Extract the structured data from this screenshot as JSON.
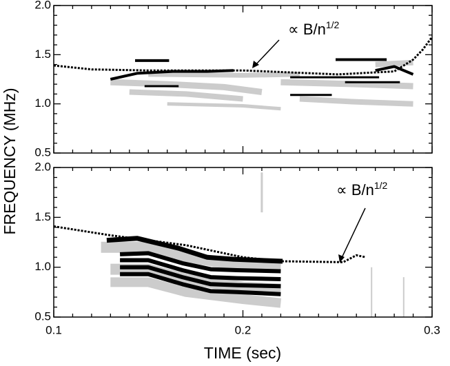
{
  "x_label": "TIME (sec)",
  "y_label": "FREQUENCY (MHz)",
  "chart_data": [
    {
      "type": "line",
      "xlim": [
        0.1,
        0.3
      ],
      "ylim": [
        0.5,
        2.0
      ],
      "xticks": [
        0.1,
        0.2,
        0.3
      ],
      "xminorticks": [
        0.11,
        0.12,
        0.13,
        0.14,
        0.15,
        0.16,
        0.17,
        0.18,
        0.19,
        0.21,
        0.22,
        0.23,
        0.24,
        0.25,
        0.26,
        0.27,
        0.28,
        0.29
      ],
      "yticks": [
        {
          "value": 0.5,
          "label": "0.5"
        },
        {
          "value": 1.0,
          "label": "1.0"
        },
        {
          "value": 1.5,
          "label": "1.5"
        },
        {
          "value": 2.0,
          "label": "2.0"
        }
      ],
      "yminorticks": [
        0.6,
        0.7,
        0.8,
        0.9,
        1.1,
        1.2,
        1.3,
        1.4,
        1.6,
        1.7,
        1.8,
        1.9
      ],
      "annotation": {
        "text": "∝ B/n",
        "sup": "1/2"
      },
      "series": [
        {
          "color": "#cccccc",
          "width": 9,
          "x": [
            0.13,
            0.16,
            0.19,
            0.21
          ],
          "values": [
            1.22,
            1.2,
            1.17,
            1.12
          ]
        },
        {
          "color": "#cccccc",
          "width": 8,
          "x": [
            0.14,
            0.17,
            0.2
          ],
          "values": [
            1.12,
            1.1,
            1.05
          ]
        },
        {
          "color": "#cccccc",
          "width": 7,
          "x": [
            0.15,
            0.2,
            0.23
          ],
          "values": [
            1.3,
            1.29,
            1.3
          ]
        },
        {
          "color": "#cccccc",
          "width": 9,
          "x": [
            0.22,
            0.26,
            0.29
          ],
          "values": [
            1.22,
            1.2,
            1.18
          ]
        },
        {
          "color": "#cccccc",
          "width": 8,
          "x": [
            0.23,
            0.26,
            0.29
          ],
          "values": [
            1.05,
            1.02,
            1.0
          ]
        },
        {
          "color": "#cccccc",
          "width": 8,
          "x": [
            0.27,
            0.29
          ],
          "values": [
            1.4,
            1.42
          ]
        },
        {
          "color": "#cccccc",
          "width": 5,
          "x": [
            0.16,
            0.2,
            0.22
          ],
          "values": [
            1.0,
            0.98,
            0.95
          ]
        },
        {
          "color": "#000000",
          "width": 4,
          "x": [
            0.13,
            0.144,
            0.163,
            0.181,
            0.195
          ],
          "values": [
            1.25,
            1.31,
            1.33,
            1.33,
            1.34
          ]
        },
        {
          "color": "#000000",
          "width": 4,
          "x": [
            0.143,
            0.161
          ],
          "values": [
            1.44,
            1.44
          ]
        },
        {
          "color": "#000000",
          "width": 3,
          "x": [
            0.148,
            0.166
          ],
          "values": [
            1.18,
            1.18
          ]
        },
        {
          "color": "#000000",
          "width": 3,
          "x": [
            0.225,
            0.272
          ],
          "values": [
            1.27,
            1.27
          ]
        },
        {
          "color": "#000000",
          "width": 3,
          "x": [
            0.225,
            0.247
          ],
          "values": [
            1.09,
            1.09
          ]
        },
        {
          "color": "#000000",
          "width": 4,
          "x": [
            0.249,
            0.276
          ],
          "values": [
            1.45,
            1.45
          ]
        },
        {
          "color": "#000000",
          "width": 3,
          "x": [
            0.254,
            0.283
          ],
          "values": [
            1.22,
            1.22
          ]
        },
        {
          "color": "#000000",
          "width": 4,
          "x": [
            0.27,
            0.28,
            0.29
          ],
          "values": [
            1.34,
            1.38,
            1.3
          ]
        },
        {
          "color": "#000000",
          "width": 3,
          "style": "dashed",
          "x": [
            0.1,
            0.12,
            0.15,
            0.2,
            0.25,
            0.28,
            0.29,
            0.295,
            0.3
          ],
          "values": [
            1.39,
            1.35,
            1.34,
            1.34,
            1.3,
            1.33,
            1.45,
            1.55,
            1.68
          ]
        }
      ]
    },
    {
      "type": "line",
      "xlim": [
        0.1,
        0.3
      ],
      "ylim": [
        0.5,
        2.0
      ],
      "xticks": [
        0.1,
        0.2,
        0.3
      ],
      "xminorticks": [
        0.11,
        0.12,
        0.13,
        0.14,
        0.15,
        0.16,
        0.17,
        0.18,
        0.19,
        0.21,
        0.22,
        0.23,
        0.24,
        0.25,
        0.26,
        0.27,
        0.28,
        0.29
      ],
      "yticks": [
        {
          "value": 0.5,
          "label": "0.5"
        },
        {
          "value": 1.0,
          "label": "1.0"
        },
        {
          "value": 1.5,
          "label": "1.5"
        },
        {
          "value": 2.0,
          "label": "2.0"
        }
      ],
      "yminorticks": [
        0.6,
        0.7,
        0.8,
        0.9,
        1.1,
        1.2,
        1.3,
        1.4,
        1.6,
        1.7,
        1.8,
        1.9
      ],
      "annotation": {
        "text": "∝ B/n",
        "sup": "1/2"
      },
      "series": [
        {
          "color": "#cccccc",
          "width": 16,
          "x": [
            0.125,
            0.15,
            0.17,
            0.2,
            0.22
          ],
          "values": [
            1.2,
            1.2,
            1.1,
            1.02,
            1.0
          ]
        },
        {
          "color": "#cccccc",
          "width": 16,
          "x": [
            0.13,
            0.15,
            0.17,
            0.2,
            0.22
          ],
          "values": [
            0.98,
            0.98,
            0.88,
            0.8,
            0.78
          ]
        },
        {
          "color": "#cccccc",
          "width": 14,
          "x": [
            0.13,
            0.15,
            0.17,
            0.2,
            0.22
          ],
          "values": [
            0.85,
            0.85,
            0.75,
            0.68,
            0.64
          ]
        },
        {
          "color": "#cccccc",
          "width": 3,
          "x": [
            0.21,
            0.21
          ],
          "values": [
            1.95,
            1.55
          ]
        },
        {
          "color": "#cccccc",
          "width": 2,
          "x": [
            0.268,
            0.268
          ],
          "values": [
            1.0,
            0.5
          ]
        },
        {
          "color": "#cccccc",
          "width": 2,
          "x": [
            0.285,
            0.285
          ],
          "values": [
            0.9,
            0.5
          ]
        },
        {
          "color": "#000000",
          "width": 7,
          "x": [
            0.128,
            0.144,
            0.166,
            0.181,
            0.195,
            0.221
          ],
          "values": [
            1.27,
            1.29,
            1.19,
            1.1,
            1.08,
            1.06
          ]
        },
        {
          "color": "#000000",
          "width": 6,
          "x": [
            0.135,
            0.15,
            0.168,
            0.183,
            0.197,
            0.22
          ],
          "values": [
            1.13,
            1.14,
            1.04,
            0.98,
            0.97,
            0.96
          ]
        },
        {
          "color": "#000000",
          "width": 6,
          "x": [
            0.135,
            0.15,
            0.168,
            0.183,
            0.197,
            0.22
          ],
          "values": [
            1.07,
            1.07,
            0.97,
            0.9,
            0.89,
            0.88
          ]
        },
        {
          "color": "#000000",
          "width": 6,
          "x": [
            0.135,
            0.15,
            0.168,
            0.183,
            0.197,
            0.22
          ],
          "values": [
            1.0,
            1.0,
            0.9,
            0.83,
            0.82,
            0.81
          ]
        },
        {
          "color": "#000000",
          "width": 6,
          "x": [
            0.135,
            0.15,
            0.168,
            0.183,
            0.197,
            0.22
          ],
          "values": [
            0.93,
            0.93,
            0.83,
            0.76,
            0.75,
            0.73
          ]
        },
        {
          "color": "#000000",
          "width": 3,
          "style": "dashed",
          "x": [
            0.1,
            0.13,
            0.17,
            0.2,
            0.22,
            0.253,
            0.26,
            0.265
          ],
          "values": [
            1.41,
            1.32,
            1.22,
            1.1,
            1.06,
            1.05,
            1.12,
            1.1
          ]
        }
      ]
    }
  ]
}
